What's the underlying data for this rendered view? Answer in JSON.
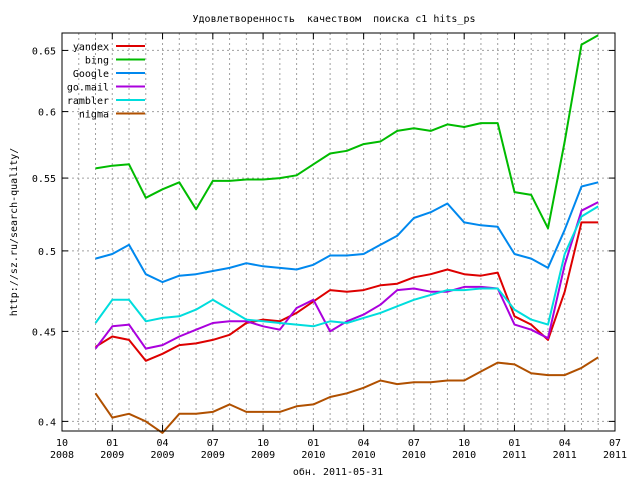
{
  "chart_data": {
    "type": "line",
    "title": "Удовлетворенность  качеством  поиска c1 hits_ps",
    "ylabel": "http://sz.ru/search-quality/",
    "xlabel": "обн. 2011-05-31",
    "y_scale": "log",
    "ylim": [
      0.395,
      0.665
    ],
    "yticks": [
      0.4,
      0.45,
      0.5,
      0.55,
      0.6,
      0.65
    ],
    "ytick_labels": [
      "0.4",
      "0.45",
      "0.5",
      "0.55",
      "0.6",
      "0.65"
    ],
    "xlim": [
      0,
      33
    ],
    "xticks": [
      {
        "x": 0,
        "month": "10",
        "year": "2008"
      },
      {
        "x": 3,
        "month": "01",
        "year": "2009"
      },
      {
        "x": 6,
        "month": "04",
        "year": "2009"
      },
      {
        "x": 9,
        "month": "07",
        "year": "2009"
      },
      {
        "x": 12,
        "month": "10",
        "year": "2009"
      },
      {
        "x": 15,
        "month": "01",
        "year": "2010"
      },
      {
        "x": 18,
        "month": "04",
        "year": "2010"
      },
      {
        "x": 21,
        "month": "07",
        "year": "2010"
      },
      {
        "x": 24,
        "month": "10",
        "year": "2010"
      },
      {
        "x": 27,
        "month": "01",
        "year": "2011"
      },
      {
        "x": 30,
        "month": "04",
        "year": "2011"
      },
      {
        "x": 33,
        "month": "07",
        "year": "2011"
      }
    ],
    "grid": true,
    "legend_position": "top-left",
    "x": [
      2,
      3,
      4,
      5,
      6,
      7,
      8,
      9,
      10,
      11,
      12,
      13,
      14,
      15,
      16,
      17,
      18,
      19,
      20,
      21,
      22,
      23,
      24,
      25,
      26,
      27,
      28,
      29,
      30,
      31,
      32
    ],
    "series": [
      {
        "name": "yandex",
        "color": "#dd0000",
        "values": [
          0.441,
          0.447,
          0.445,
          0.433,
          0.437,
          0.442,
          0.443,
          0.445,
          0.448,
          0.455,
          0.457,
          0.456,
          0.461,
          0.468,
          0.475,
          0.474,
          0.475,
          0.478,
          0.479,
          0.483,
          0.485,
          0.488,
          0.485,
          0.484,
          0.486,
          0.459,
          0.454,
          0.445,
          0.474,
          0.519,
          0.519
        ]
      },
      {
        "name": "bing",
        "color": "#00bb00",
        "values": [
          0.557,
          0.559,
          0.56,
          0.536,
          0.542,
          0.547,
          0.528,
          0.548,
          0.548,
          0.549,
          0.549,
          0.55,
          0.552,
          0.56,
          0.568,
          0.57,
          0.575,
          0.577,
          0.585,
          0.587,
          0.585,
          0.59,
          0.588,
          0.591,
          0.591,
          0.54,
          0.538,
          0.515,
          0.577,
          0.655,
          0.663
        ]
      },
      {
        "name": "Google",
        "color": "#0088ee",
        "values": [
          0.495,
          0.498,
          0.504,
          0.485,
          0.48,
          0.484,
          0.485,
          0.487,
          0.489,
          0.492,
          0.49,
          0.489,
          0.488,
          0.491,
          0.497,
          0.497,
          0.498,
          0.504,
          0.51,
          0.522,
          0.526,
          0.532,
          0.519,
          0.517,
          0.516,
          0.498,
          0.495,
          0.489,
          0.514,
          0.544,
          0.547
        ]
      },
      {
        "name": "go.mail",
        "color": "#aa00dd",
        "values": [
          0.44,
          0.453,
          0.454,
          0.44,
          0.442,
          0.447,
          0.451,
          0.455,
          0.456,
          0.456,
          0.453,
          0.451,
          0.464,
          0.469,
          0.45,
          0.456,
          0.46,
          0.466,
          0.475,
          0.476,
          0.474,
          0.474,
          0.477,
          0.477,
          0.476,
          0.454,
          0.451,
          0.446,
          0.491,
          0.527,
          0.533
        ]
      },
      {
        "name": "rambler",
        "color": "#00dddd",
        "values": [
          0.455,
          0.469,
          0.469,
          0.456,
          0.458,
          0.459,
          0.463,
          0.469,
          0.463,
          0.457,
          0.456,
          0.455,
          0.454,
          0.453,
          0.456,
          0.455,
          0.458,
          0.461,
          0.465,
          0.469,
          0.472,
          0.475,
          0.475,
          0.476,
          0.476,
          0.463,
          0.457,
          0.454,
          0.498,
          0.523,
          0.53
        ]
      },
      {
        "name": "nigma",
        "color": "#b05000",
        "values": [
          0.415,
          0.402,
          0.404,
          0.4,
          0.394,
          0.404,
          0.404,
          0.405,
          0.409,
          0.405,
          0.405,
          0.405,
          0.408,
          0.409,
          0.413,
          0.415,
          0.418,
          0.422,
          0.42,
          0.421,
          0.421,
          0.422,
          0.422,
          0.427,
          0.432,
          0.431,
          0.426,
          0.425,
          0.425,
          0.429,
          0.435
        ]
      }
    ]
  }
}
